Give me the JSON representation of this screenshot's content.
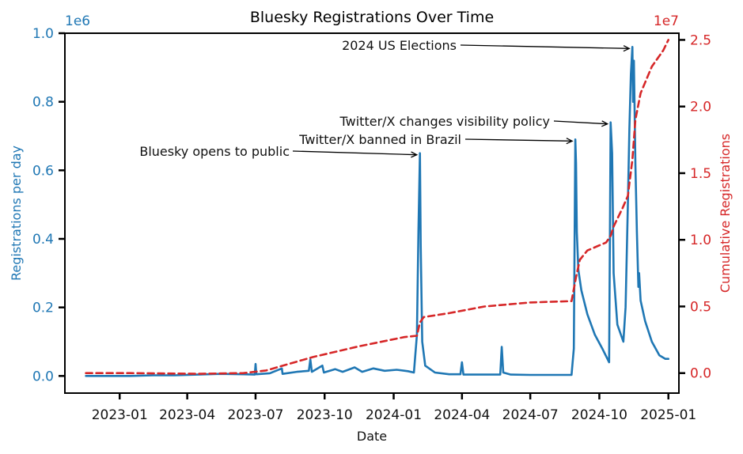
{
  "chart_data": {
    "type": "line",
    "title": "Bluesky Registrations Over Time",
    "xlabel": "Date",
    "ylabel": "Registrations per day",
    "ylabel_right": "Cumulative Registrations",
    "y_scale_label": "1e6",
    "y2_scale_label": "1e7",
    "x_ticks": [
      "2023-01",
      "2023-04",
      "2023-07",
      "2023-10",
      "2024-01",
      "2024-04",
      "2024-07",
      "2024-10",
      "2025-01"
    ],
    "y_ticks": [
      "0.0",
      "0.2",
      "0.4",
      "0.6",
      "0.8",
      "1.0"
    ],
    "y2_ticks": [
      "0.0",
      "0.5",
      "1.0",
      "1.5",
      "2.0",
      "2.5"
    ],
    "xlim": [
      "2022-10-20",
      "2025-01-15"
    ],
    "ylim": [
      -0.05,
      1.0
    ],
    "y2lim": [
      -0.15,
      2.55
    ],
    "colors": {
      "daily": "#1f77b4",
      "cumulative": "#d62728"
    },
    "series": [
      {
        "name": "",
        "axis": "left",
        "unit": "1e6",
        "points": [
          [
            "2022-11-17",
            0.0
          ],
          [
            "2022-12-15",
            0.0
          ],
          [
            "2023-01-15",
            0.0
          ],
          [
            "2023-02-15",
            0.002
          ],
          [
            "2023-03-15",
            0.002
          ],
          [
            "2023-04-15",
            0.004
          ],
          [
            "2023-05-15",
            0.006
          ],
          [
            "2023-06-15",
            0.005
          ],
          [
            "2023-06-30",
            0.004
          ],
          [
            "2023-07-01",
            0.035
          ],
          [
            "2023-07-02",
            0.005
          ],
          [
            "2023-07-20",
            0.008
          ],
          [
            "2023-08-05",
            0.022
          ],
          [
            "2023-08-06",
            0.006
          ],
          [
            "2023-08-25",
            0.012
          ],
          [
            "2023-09-10",
            0.015
          ],
          [
            "2023-09-12",
            0.048
          ],
          [
            "2023-09-14",
            0.012
          ],
          [
            "2023-09-28",
            0.03
          ],
          [
            "2023-09-30",
            0.01
          ],
          [
            "2023-10-15",
            0.02
          ],
          [
            "2023-10-25",
            0.012
          ],
          [
            "2023-11-10",
            0.025
          ],
          [
            "2023-11-20",
            0.012
          ],
          [
            "2023-12-05",
            0.022
          ],
          [
            "2023-12-20",
            0.015
          ],
          [
            "2024-01-05",
            0.018
          ],
          [
            "2024-01-20",
            0.014
          ],
          [
            "2024-01-28",
            0.01
          ],
          [
            "2024-02-01",
            0.12
          ],
          [
            "2024-02-03",
            0.42
          ],
          [
            "2024-02-05",
            0.65
          ],
          [
            "2024-02-06",
            0.38
          ],
          [
            "2024-02-08",
            0.1
          ],
          [
            "2024-02-12",
            0.03
          ],
          [
            "2024-02-25",
            0.01
          ],
          [
            "2024-03-15",
            0.005
          ],
          [
            "2024-03-30",
            0.005
          ],
          [
            "2024-04-01",
            0.04
          ],
          [
            "2024-04-03",
            0.004
          ],
          [
            "2024-05-01",
            0.004
          ],
          [
            "2024-05-22",
            0.004
          ],
          [
            "2024-05-24",
            0.085
          ],
          [
            "2024-05-26",
            0.01
          ],
          [
            "2024-06-05",
            0.004
          ],
          [
            "2024-07-01",
            0.003
          ],
          [
            "2024-08-01",
            0.003
          ],
          [
            "2024-08-25",
            0.003
          ],
          [
            "2024-08-28",
            0.08
          ],
          [
            "2024-08-30",
            0.69
          ],
          [
            "2024-08-31",
            0.62
          ],
          [
            "2024-09-01",
            0.42
          ],
          [
            "2024-09-03",
            0.31
          ],
          [
            "2024-09-07",
            0.25
          ],
          [
            "2024-09-15",
            0.18
          ],
          [
            "2024-09-25",
            0.12
          ],
          [
            "2024-10-05",
            0.08
          ],
          [
            "2024-10-14",
            0.04
          ],
          [
            "2024-10-16",
            0.74
          ],
          [
            "2024-10-18",
            0.65
          ],
          [
            "2024-10-20",
            0.3
          ],
          [
            "2024-10-25",
            0.15
          ],
          [
            "2024-11-02",
            0.1
          ],
          [
            "2024-11-05",
            0.2
          ],
          [
            "2024-11-08",
            0.5
          ],
          [
            "2024-11-10",
            0.72
          ],
          [
            "2024-11-12",
            0.88
          ],
          [
            "2024-11-14",
            0.96
          ],
          [
            "2024-11-15",
            0.8
          ],
          [
            "2024-11-16",
            0.92
          ],
          [
            "2024-11-18",
            0.62
          ],
          [
            "2024-11-20",
            0.42
          ],
          [
            "2024-11-22",
            0.26
          ],
          [
            "2024-11-23",
            0.3
          ],
          [
            "2024-11-25",
            0.22
          ],
          [
            "2024-12-01",
            0.16
          ],
          [
            "2024-12-10",
            0.1
          ],
          [
            "2024-12-20",
            0.06
          ],
          [
            "2024-12-28",
            0.05
          ],
          [
            "2025-01-01",
            0.05
          ]
        ]
      },
      {
        "name": "",
        "axis": "right",
        "unit": "1e7",
        "points": [
          [
            "2022-11-17",
            0.0
          ],
          [
            "2023-01-15",
            0.0
          ],
          [
            "2023-04-15",
            -0.005
          ],
          [
            "2023-06-15",
            0.0
          ],
          [
            "2023-07-15",
            0.02
          ],
          [
            "2023-09-15",
            0.12
          ],
          [
            "2023-11-15",
            0.2
          ],
          [
            "2024-01-15",
            0.27
          ],
          [
            "2024-02-01",
            0.28
          ],
          [
            "2024-02-03",
            0.33
          ],
          [
            "2024-02-05",
            0.38
          ],
          [
            "2024-02-10",
            0.42
          ],
          [
            "2024-03-15",
            0.45
          ],
          [
            "2024-05-01",
            0.5
          ],
          [
            "2024-07-01",
            0.53
          ],
          [
            "2024-08-25",
            0.54
          ],
          [
            "2024-08-31",
            0.72
          ],
          [
            "2024-09-05",
            0.85
          ],
          [
            "2024-09-15",
            0.92
          ],
          [
            "2024-10-10",
            0.98
          ],
          [
            "2024-10-16",
            1.03
          ],
          [
            "2024-10-20",
            1.1
          ],
          [
            "2024-11-01",
            1.24
          ],
          [
            "2024-11-08",
            1.33
          ],
          [
            "2024-11-14",
            1.6
          ],
          [
            "2024-11-18",
            1.9
          ],
          [
            "2024-11-25",
            2.1
          ],
          [
            "2024-12-10",
            2.3
          ],
          [
            "2024-12-25",
            2.42
          ],
          [
            "2025-01-01",
            2.5
          ]
        ]
      }
    ],
    "annotations": [
      {
        "text": "2024 US Elections",
        "target": [
          "2024-11-14",
          0.96
        ]
      },
      {
        "text": "Twitter/X changes visibility policy",
        "target": [
          "2024-10-16",
          0.74
        ]
      },
      {
        "text": "Twitter/X banned in Brazil",
        "target": [
          "2024-08-30",
          0.69
        ]
      },
      {
        "text": "Bluesky opens to public",
        "target": [
          "2024-02-05",
          0.65
        ]
      }
    ],
    "grid": false,
    "legend": "none"
  }
}
